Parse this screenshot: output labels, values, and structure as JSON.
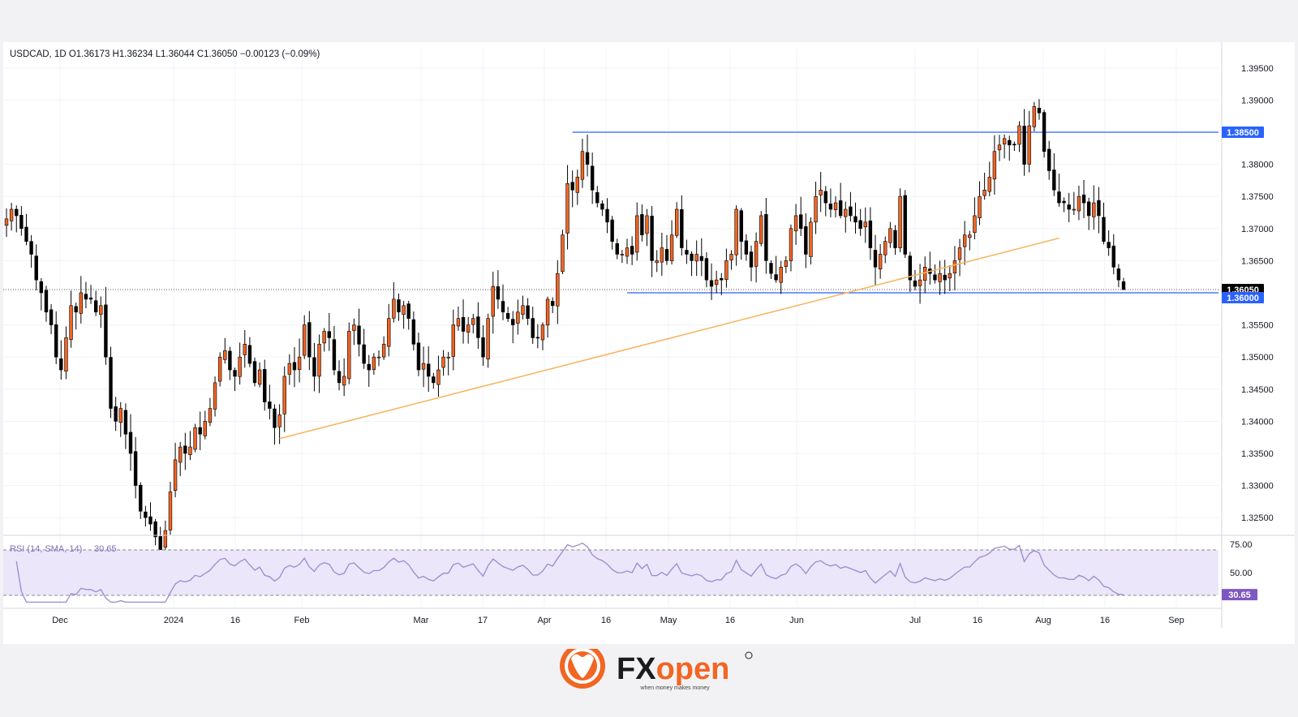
{
  "header": {
    "symbol_line": "USDCAD, 1D  O1.36173  H1.36234  L1.36044  C1.36050  −0.00123 (−0.09%)"
  },
  "rsi": {
    "label": "RSI (14, SMA, 14)",
    "value_label": "30.65",
    "value": 30.65,
    "levels": [
      70,
      30
    ],
    "ticks": [
      "75.00",
      "50.00"
    ],
    "badge": "30.65"
  },
  "colors": {
    "bull": "#f26522",
    "bear": "#000000",
    "trendline": "#f6b35c",
    "level_line": "#2962ff",
    "rsi_line": "#9b8ad0",
    "rsi_band": "#ebe6f9",
    "badge_blue": "#2962ff",
    "badge_black": "#000000",
    "badge_rsi": "#7e57c2"
  },
  "chart_data": {
    "type": "candlestick",
    "symbol": "USDCAD",
    "timeframe": "1D",
    "ohlc": {
      "open": 1.36173,
      "high": 1.36234,
      "low": 1.36044,
      "close": 1.3605,
      "change": -0.00123,
      "change_pct": -0.09
    },
    "ylim": [
      1.3225,
      1.398
    ],
    "yticks": [
      "1.39500",
      "1.39000",
      "1.38000",
      "1.37500",
      "1.37000",
      "1.36500",
      "1.35500",
      "1.35000",
      "1.34500",
      "1.34000",
      "1.33500",
      "1.33000",
      "1.32500"
    ],
    "xticks": [
      "Dec",
      "2024",
      "16",
      "Feb",
      "Mar",
      "17",
      "Apr",
      "16",
      "May",
      "16",
      "Jun",
      "Jul",
      "16",
      "Aug",
      "16",
      "Sep"
    ],
    "price_badges": [
      {
        "label": "1.38500",
        "value": 1.385,
        "style": "level"
      },
      {
        "label": "1.36050",
        "value": 1.3605,
        "style": "last"
      },
      {
        "label": "1.36000",
        "value": 1.36,
        "style": "level"
      }
    ],
    "levels": [
      {
        "value": 1.385,
        "from_index": 114,
        "to_index": 232
      },
      {
        "value": 1.36,
        "from_index": 125,
        "to_index": 232
      }
    ],
    "last_price": 1.3605,
    "trendline": {
      "from": {
        "index": 55,
        "price": 1.3373
      },
      "to": {
        "index": 212,
        "price": 1.3685
      }
    },
    "closes": [
      1.3715,
      1.373,
      1.372,
      1.37,
      1.368,
      1.366,
      1.362,
      1.36,
      1.357,
      1.355,
      1.35,
      1.348,
      1.353,
      1.358,
      1.357,
      1.36,
      1.359,
      1.359,
      1.357,
      1.358,
      1.35,
      1.342,
      1.34,
      1.342,
      1.338,
      1.335,
      1.33,
      1.326,
      1.325,
      1.324,
      1.322,
      1.32,
      1.323,
      1.329,
      1.334,
      1.336,
      1.335,
      1.336,
      1.339,
      1.338,
      1.34,
      1.342,
      1.346,
      1.35,
      1.351,
      1.348,
      1.347,
      1.35,
      1.352,
      1.349,
      1.346,
      1.348,
      1.343,
      1.342,
      1.339,
      1.341,
      1.347,
      1.349,
      1.348,
      1.35,
      1.355,
      1.35,
      1.347,
      1.352,
      1.354,
      1.353,
      1.348,
      1.346,
      1.347,
      1.354,
      1.355,
      1.352,
      1.349,
      1.348,
      1.35,
      1.35,
      1.352,
      1.356,
      1.359,
      1.357,
      1.358,
      1.356,
      1.352,
      1.348,
      1.349,
      1.347,
      1.346,
      1.348,
      1.35,
      1.35,
      1.355,
      1.356,
      1.354,
      1.355,
      1.356,
      1.353,
      1.35,
      1.356,
      1.361,
      1.359,
      1.357,
      1.356,
      1.355,
      1.357,
      1.358,
      1.356,
      1.353,
      1.353,
      1.355,
      1.359,
      1.358,
      1.363,
      1.369,
      1.377,
      1.376,
      1.378,
      1.382,
      1.38,
      1.376,
      1.374,
      1.373,
      1.371,
      1.368,
      1.366,
      1.366,
      1.367,
      1.366,
      1.372,
      1.369,
      1.372,
      1.365,
      1.365,
      1.367,
      1.365,
      1.369,
      1.373,
      1.367,
      1.366,
      1.365,
      1.366,
      1.365,
      1.362,
      1.361,
      1.362,
      1.362,
      1.365,
      1.366,
      1.373,
      1.368,
      1.366,
      1.364,
      1.368,
      1.372,
      1.365,
      1.363,
      1.362,
      1.364,
      1.365,
      1.37,
      1.372,
      1.37,
      1.366,
      1.371,
      1.375,
      1.376,
      1.374,
      1.373,
      1.374,
      1.372,
      1.373,
      1.372,
      1.371,
      1.37,
      1.371,
      1.367,
      1.364,
      1.366,
      1.368,
      1.37,
      1.367,
      1.375,
      1.366,
      1.362,
      1.361,
      1.362,
      1.364,
      1.363,
      1.362,
      1.363,
      1.362,
      1.363,
      1.365,
      1.367,
      1.369,
      1.369,
      1.372,
      1.375,
      1.376,
      1.378,
      1.382,
      1.383,
      1.384,
      1.383,
      1.383,
      1.386,
      1.38,
      1.386,
      1.389,
      1.388,
      1.382,
      1.379,
      1.376,
      1.374,
      1.374,
      1.373,
      1.373,
      1.375,
      1.374,
      1.372,
      1.374,
      1.372,
      1.368,
      1.367,
      1.364,
      1.362,
      1.3605
    ]
  }
}
